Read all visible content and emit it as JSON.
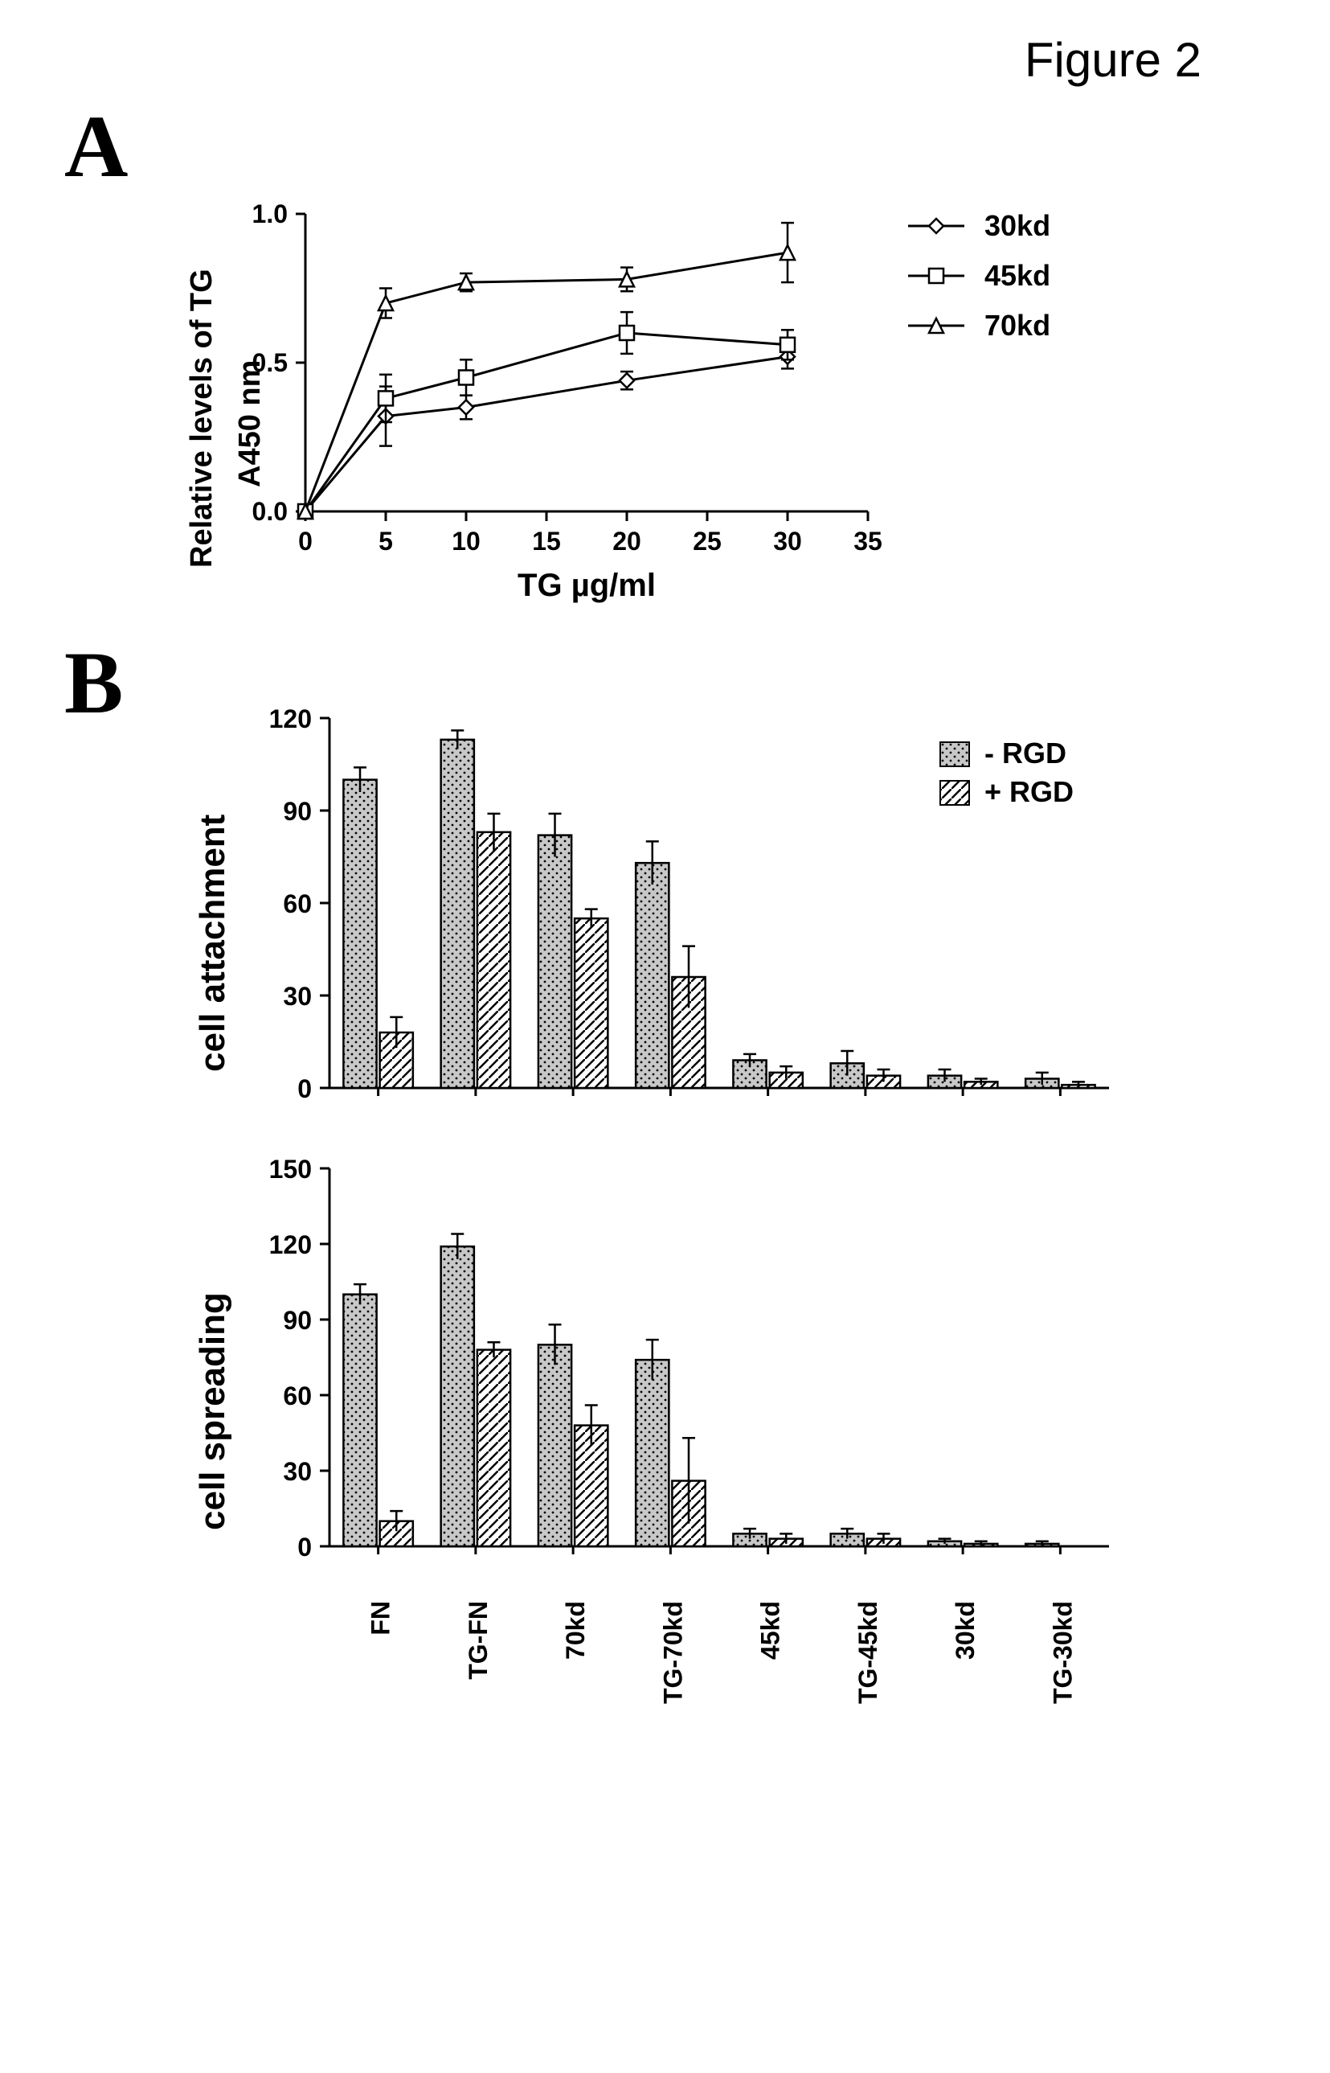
{
  "figure_label": "Figure 2",
  "panels": {
    "A": "A",
    "B": "B"
  },
  "panelA": {
    "type": "line",
    "xlabel": "TG µg/ml",
    "ylabel_line1": "Relative levels of TG",
    "ylabel_line2": "A450 nm",
    "xlim": [
      0,
      35
    ],
    "ylim": [
      0.0,
      1.0
    ],
    "xticks": [
      0,
      5,
      10,
      15,
      20,
      25,
      30,
      35
    ],
    "yticks": [
      0.0,
      0.5,
      1.0
    ],
    "ytick_labels": [
      "0.0",
      "0.5",
      "1.0"
    ],
    "axis_color": "#000000",
    "background_color": "#ffffff",
    "series": [
      {
        "name": "30kd",
        "marker": "diamond",
        "x": [
          0,
          5,
          10,
          20,
          30
        ],
        "y": [
          0.0,
          0.32,
          0.35,
          0.44,
          0.52
        ],
        "err": [
          0,
          0.1,
          0.04,
          0.03,
          0.04
        ]
      },
      {
        "name": "45kd",
        "marker": "square",
        "x": [
          0,
          5,
          10,
          20,
          30
        ],
        "y": [
          0.0,
          0.38,
          0.45,
          0.6,
          0.56
        ],
        "err": [
          0,
          0.08,
          0.06,
          0.07,
          0.05
        ]
      },
      {
        "name": "70kd",
        "marker": "triangle",
        "x": [
          0,
          5,
          10,
          20,
          30
        ],
        "y": [
          0.0,
          0.7,
          0.77,
          0.78,
          0.87
        ],
        "err": [
          0,
          0.05,
          0.03,
          0.04,
          0.1
        ]
      }
    ],
    "legend_order": [
      "30kd",
      "45kd",
      "70kd"
    ]
  },
  "panelB": {
    "type": "grouped_bar",
    "charts": [
      {
        "ylabel": "cell attachment",
        "ylim": [
          0,
          120
        ],
        "yticks": [
          0,
          30,
          60,
          90,
          120
        ]
      },
      {
        "ylabel": "cell spreading",
        "ylim": [
          0,
          150
        ],
        "yticks": [
          0,
          30,
          60,
          90,
          120,
          150
        ]
      }
    ],
    "categories": [
      "FN",
      "TG-FN",
      "70kd",
      "TG-70kd",
      "45kd",
      "TG-45kd",
      "30kd",
      "TG-30kd"
    ],
    "legend": [
      {
        "label": "- RGD",
        "pattern": "dots"
      },
      {
        "label": "+ RGD",
        "pattern": "hatch"
      }
    ],
    "bar_border_color": "#000000",
    "background_color": "#ffffff",
    "data": {
      "cell attachment": {
        "-RGD": {
          "values": [
            100,
            113,
            82,
            73,
            9,
            8,
            4,
            3
          ],
          "err": [
            4,
            3,
            7,
            7,
            2,
            4,
            2,
            2
          ]
        },
        "+RGD": {
          "values": [
            18,
            83,
            55,
            36,
            5,
            4,
            2,
            1
          ],
          "err": [
            5,
            6,
            3,
            10,
            2,
            2,
            1,
            1
          ]
        }
      },
      "cell spreading": {
        "-RGD": {
          "values": [
            100,
            119,
            80,
            74,
            5,
            5,
            2,
            1
          ],
          "err": [
            4,
            5,
            8,
            8,
            2,
            2,
            1,
            1
          ]
        },
        "+RGD": {
          "values": [
            10,
            78,
            48,
            26,
            3,
            3,
            1,
            0
          ],
          "err": [
            4,
            3,
            8,
            17,
            2,
            2,
            1,
            0
          ]
        }
      }
    }
  },
  "fonts": {
    "title": 60,
    "panel_letter": 110,
    "tick": 32,
    "axis": 40,
    "legend": 36
  },
  "colors": {
    "ink": "#000000",
    "paper": "#ffffff",
    "dots_fill": "#c8c8c8",
    "hatch_fill": "#ffffff"
  }
}
